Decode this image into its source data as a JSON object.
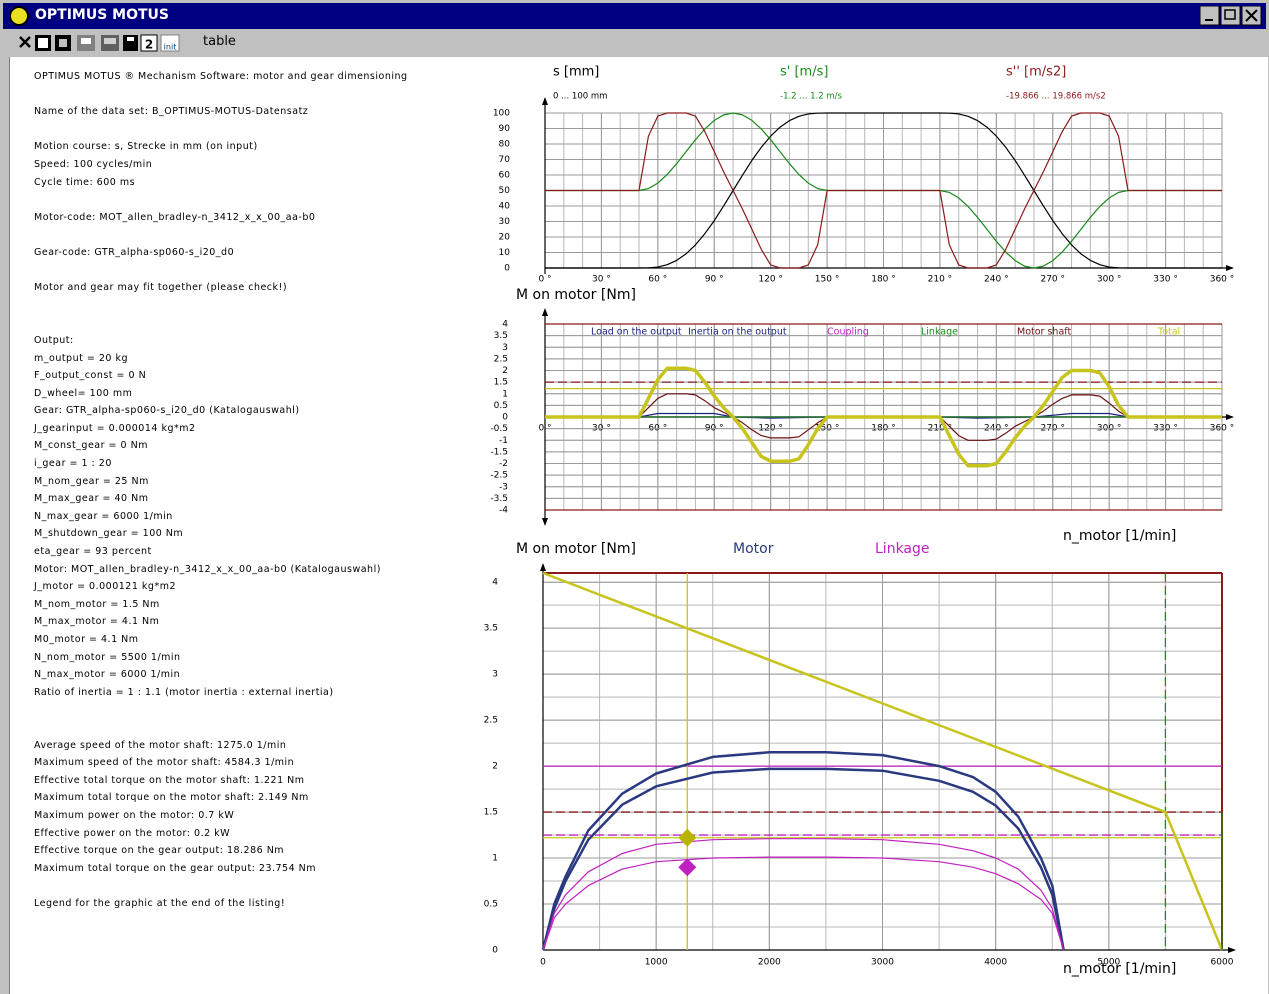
{
  "window": {
    "title": "OPTIMUS MOTUS"
  },
  "toolbar": {
    "icon_texts": [
      "2",
      "init"
    ],
    "label": "table"
  },
  "listing": [
    [
      "OPTIMUS MOTUS ® Mechanism Software: motor and gear dimensioning"
    ],
    [
      "Name of the data set: B_OPTIMUS-MOTUS-Datensatz"
    ],
    [
      "Motion course: s, Strecke in mm (on input)",
      "Speed: 100 cycles/min",
      "Cycle time: 600 ms"
    ],
    [
      "Motor-code: MOT_allen_bradley-n_3412_x_x_00_aa-b0"
    ],
    [
      "Gear-code: GTR_alpha-sp060-s_i20_d0"
    ],
    [
      "Motor and gear may fit together (please check!)"
    ],
    [
      "Output:",
      "m_output = 20 kg",
      "F_output_const = 0 N",
      "D_wheel= 100 mm",
      "Gear: GTR_alpha-sp060-s_i20_d0 (Katalogauswahl)",
      "J_gearinput = 0.000014 kg*m2",
      "M_const_gear = 0 Nm",
      "i_gear = 1 : 20",
      "M_nom_gear = 25 Nm",
      "M_max_gear = 40 Nm",
      "N_max_gear = 6000 1/min",
      "M_shutdown_gear = 100 Nm",
      "eta_gear = 93 percent",
      "Motor: MOT_allen_bradley-n_3412_x_x_00_aa-b0 (Katalogauswahl)",
      "J_motor = 0.000121 kg*m2",
      "M_nom_motor = 1.5 Nm",
      "M_max_motor = 4.1 Nm",
      "M0_motor = 4.1 Nm",
      "N_nom_motor = 5500 1/min",
      "N_max_motor = 6000 1/min",
      "Ratio of inertia = 1 : 1.1 (motor inertia : external inertia)"
    ],
    [
      "Average speed of the motor shaft: 1275.0 1/min",
      "Maximum speed of the motor shaft: 4584.3 1/min",
      "Effective total torque on the motor shaft: 1.221 Nm",
      "Maximum total torque on the motor shaft: 2.149 Nm",
      "Maximum power on the motor: 0.7 kW",
      "Effective power on the motor: 0.2 kW",
      "Effective torque on the gear output: 18.286 Nm",
      "Maximum total torque on the gear output: 23.754 Nm"
    ],
    [
      "Legend for the graphic at the end of the listing!"
    ]
  ],
  "chart_data": [
    {
      "type": "line",
      "x": [
        0,
        5,
        10,
        15,
        20,
        25,
        30,
        35,
        40,
        45,
        50,
        55,
        60,
        65,
        70,
        75,
        80,
        85,
        90,
        95,
        100,
        105,
        110,
        115,
        120,
        125,
        130,
        135,
        140,
        145,
        150,
        155,
        160,
        165,
        170,
        175,
        180,
        185,
        190,
        195,
        200,
        205,
        210,
        215,
        220,
        225,
        230,
        235,
        240,
        245,
        250,
        255,
        260,
        265,
        270,
        275,
        280,
        285,
        290,
        295,
        300,
        305,
        310,
        315,
        320,
        325,
        330,
        335,
        340,
        345,
        350,
        355,
        360
      ],
      "series": [
        {
          "name": "s [mm]",
          "range": "0 ... 100 mm",
          "color": "#000000",
          "values": [
            0,
            0,
            0,
            0,
            0,
            0,
            0,
            0,
            0,
            0,
            0,
            0.1,
            0.6,
            2.1,
            4.9,
            9.1,
            14.9,
            22.1,
            30.6,
            40.1,
            50,
            59.9,
            69.4,
            77.9,
            85.1,
            90.9,
            95.1,
            97.9,
            99.4,
            99.9,
            100,
            100,
            100,
            100,
            100,
            100,
            100,
            100,
            100,
            100,
            100,
            100,
            100,
            99.9,
            99.4,
            97.9,
            95.1,
            90.9,
            85.1,
            77.9,
            69.4,
            59.9,
            50,
            40.1,
            30.6,
            22.1,
            14.9,
            9.1,
            4.9,
            2.1,
            0.6,
            0.1,
            0,
            0,
            0,
            0,
            0,
            0,
            0,
            0,
            0,
            0,
            0
          ]
        },
        {
          "name": "s' [m/s]",
          "range": "-1.2 ... 1.2 m/s",
          "color": "#1a8a1a",
          "values": [
            50,
            50,
            50,
            50,
            50,
            50,
            50,
            50,
            50,
            50,
            50,
            51.2,
            54.8,
            60.3,
            67.3,
            75,
            82.7,
            89.7,
            95.2,
            98.8,
            100,
            98.8,
            95.2,
            89.7,
            82.7,
            75,
            67.3,
            60.3,
            54.8,
            51.2,
            50,
            50,
            50,
            50,
            50,
            50,
            50,
            50,
            50,
            50,
            50,
            50,
            50,
            48.8,
            45.2,
            39.7,
            32.7,
            25,
            17.3,
            10.3,
            4.8,
            1.2,
            0,
            1.2,
            4.8,
            10.3,
            17.3,
            25,
            32.7,
            39.7,
            45.2,
            48.8,
            50,
            50,
            50,
            50,
            50,
            50,
            50,
            50,
            50,
            50,
            50
          ]
        },
        {
          "name": "s'' [m/s2]",
          "range": "-19.866 ... 19.866 m/s2",
          "color": "#8b1a1a",
          "values": [
            50,
            50,
            50,
            50,
            50,
            50,
            50,
            50,
            50,
            50,
            50,
            85,
            98,
            100,
            100,
            100,
            98,
            88,
            75,
            62,
            50,
            38,
            25,
            12,
            2,
            0,
            0,
            0,
            2,
            15,
            50,
            50,
            50,
            50,
            50,
            50,
            50,
            50,
            50,
            50,
            50,
            50,
            50,
            15,
            2,
            0,
            0,
            0,
            2,
            12,
            25,
            38,
            50,
            62,
            75,
            88,
            98,
            100,
            100,
            100,
            98,
            85,
            50,
            50,
            50,
            50,
            50,
            50,
            50,
            50,
            50,
            50,
            50
          ]
        }
      ],
      "xlim": [
        0,
        360
      ],
      "xticks": [
        {
          "value": 0,
          "label": "0 °"
        },
        {
          "value": 30,
          "label": "30 °"
        },
        {
          "value": 60,
          "label": "60 °"
        },
        {
          "value": 90,
          "label": "90 °"
        },
        {
          "value": 120,
          "label": "120 °"
        },
        {
          "value": 150,
          "label": "150 °"
        },
        {
          "value": 180,
          "label": "180 °"
        },
        {
          "value": 210,
          "label": "210 °"
        },
        {
          "value": 240,
          "label": "240 °"
        },
        {
          "value": 270,
          "label": "270 °"
        },
        {
          "value": 300,
          "label": "300 °"
        },
        {
          "value": 330,
          "label": "330 °"
        },
        {
          "value": 360,
          "label": "360 °"
        }
      ],
      "ylim": [
        0,
        100
      ],
      "yticks": [
        0,
        10,
        20,
        30,
        40,
        50,
        60,
        70,
        80,
        90,
        100
      ],
      "grid": true
    },
    {
      "type": "line",
      "ylabel": "M on motor [Nm]",
      "x": [
        0,
        5,
        10,
        15,
        20,
        25,
        30,
        35,
        40,
        45,
        50,
        55,
        60,
        65,
        70,
        75,
        80,
        85,
        90,
        95,
        100,
        105,
        110,
        115,
        120,
        125,
        130,
        135,
        140,
        145,
        150,
        155,
        160,
        165,
        170,
        175,
        180,
        185,
        190,
        195,
        200,
        205,
        210,
        215,
        220,
        225,
        230,
        235,
        240,
        245,
        250,
        255,
        260,
        265,
        270,
        275,
        280,
        285,
        290,
        295,
        300,
        305,
        310,
        315,
        320,
        325,
        330,
        335,
        340,
        345,
        350,
        355,
        360
      ],
      "series": [
        {
          "name": "Load on the output",
          "color": "#1a237e",
          "x": [
            0,
            360
          ],
          "values": [
            0,
            0
          ]
        },
        {
          "name": "Inertia on the output",
          "color": "#1a237e",
          "x": [
            0,
            50,
            60,
            90,
            100,
            120,
            150,
            210,
            230,
            260,
            280,
            300,
            310,
            360
          ],
          "values": [
            0,
            0,
            0.15,
            0.15,
            0,
            -0.05,
            0,
            0,
            -0.05,
            0,
            0.15,
            0.15,
            0,
            0
          ]
        },
        {
          "name": "Coupling",
          "color": "#c020c0",
          "x": [
            0,
            360
          ],
          "values": [
            0,
            0
          ]
        },
        {
          "name": "Linkage",
          "color": "#1a8a1a",
          "x": [
            0,
            360
          ],
          "values": [
            0,
            0
          ]
        },
        {
          "name": "Motor shaft",
          "color": "#6b1010",
          "values": [
            0,
            0,
            0,
            0,
            0,
            0,
            0,
            0,
            0,
            0,
            0,
            0.4,
            0.8,
            1.0,
            1.0,
            1.0,
            0.95,
            0.7,
            0.4,
            0.2,
            0,
            -0.25,
            -0.55,
            -0.8,
            -0.9,
            -0.9,
            -0.9,
            -0.85,
            -0.55,
            -0.25,
            0,
            0,
            0,
            0,
            0,
            0,
            0,
            0,
            0,
            0,
            0,
            0,
            0,
            -0.4,
            -0.8,
            -1.0,
            -1.0,
            -1.0,
            -0.95,
            -0.7,
            -0.4,
            -0.2,
            0,
            0.25,
            0.55,
            0.8,
            0.95,
            0.95,
            0.95,
            0.9,
            0.6,
            0.25,
            0,
            0,
            0,
            0,
            0,
            0,
            0,
            0,
            0,
            0,
            0
          ]
        },
        {
          "name": "Total",
          "color": "#c8c41e",
          "values": [
            0,
            0,
            0,
            0,
            0,
            0,
            0,
            0,
            0,
            0,
            0,
            0.8,
            1.6,
            2.1,
            2.1,
            2.1,
            2.0,
            1.5,
            0.9,
            0.4,
            0,
            -0.5,
            -1.1,
            -1.7,
            -1.9,
            -1.9,
            -1.9,
            -1.8,
            -1.2,
            -0.5,
            0,
            0,
            0,
            0,
            0,
            0,
            0,
            0,
            0,
            0,
            0,
            0,
            0,
            -0.8,
            -1.6,
            -2.1,
            -2.1,
            -2.1,
            -2.0,
            -1.5,
            -0.9,
            -0.4,
            0,
            0.5,
            1.1,
            1.7,
            2.0,
            2.0,
            2.0,
            1.9,
            1.3,
            0.5,
            0,
            0,
            0,
            0,
            0,
            0,
            0,
            0,
            0,
            0,
            0
          ]
        }
      ],
      "hlines": [
        {
          "value": 4,
          "color": "#8b1a1a"
        },
        {
          "value": -4,
          "color": "#8b1a1a"
        },
        {
          "value": 1.5,
          "color": "#8b1a1a",
          "dash": true
        },
        {
          "value": 1.221,
          "color": "#c8c41e"
        }
      ],
      "xlim": [
        0,
        360
      ],
      "xticks": [
        {
          "value": 0,
          "label": "0 °"
        },
        {
          "value": 30,
          "label": "30 °"
        },
        {
          "value": 60,
          "label": "60 °"
        },
        {
          "value": 90,
          "label": "90 °"
        },
        {
          "value": 120,
          "label": "120 °"
        },
        {
          "value": 150,
          "label": "150 °"
        },
        {
          "value": 180,
          "label": "180 °"
        },
        {
          "value": 210,
          "label": "210 °"
        },
        {
          "value": 240,
          "label": "240 °"
        },
        {
          "value": 270,
          "label": "270 °"
        },
        {
          "value": 300,
          "label": "300 °"
        },
        {
          "value": 330,
          "label": "330 °"
        },
        {
          "value": 360,
          "label": "360 °"
        }
      ],
      "ylim": [
        -4,
        4
      ],
      "yticks": [
        4,
        3.5,
        3,
        2.5,
        2,
        1.5,
        1,
        0.5,
        0,
        -0.5,
        -1,
        -1.5,
        -2,
        -2.5,
        -3,
        -3.5,
        -4
      ],
      "grid": true
    },
    {
      "type": "line",
      "ylabel": "M on motor [Nm]",
      "xlabel": "n_motor [1/min]",
      "x": [
        0,
        100,
        200,
        400,
        700,
        1000,
        1500,
        2000,
        2500,
        3000,
        3500,
        3800,
        4000,
        4200,
        4400,
        4500,
        4600
      ],
      "series": [
        {
          "name": "Motor",
          "color": "#2b3a80",
          "values": [
            0,
            0.5,
            0.8,
            1.3,
            1.7,
            1.92,
            2.1,
            2.15,
            2.15,
            2.12,
            2.0,
            1.88,
            1.72,
            1.45,
            1.0,
            0.7,
            0
          ]
        },
        {
          "color": "#2b3a80",
          "values": [
            0,
            0.45,
            0.75,
            1.2,
            1.58,
            1.78,
            1.93,
            1.97,
            1.97,
            1.95,
            1.84,
            1.72,
            1.57,
            1.32,
            0.9,
            0.6,
            0
          ]
        },
        {
          "name": "Linkage",
          "color": "#c020c0",
          "values": [
            0,
            0.4,
            0.6,
            0.85,
            1.05,
            1.15,
            1.2,
            1.21,
            1.21,
            1.2,
            1.15,
            1.08,
            1.0,
            0.88,
            0.65,
            0.45,
            0
          ]
        },
        {
          "color": "#c020c0",
          "values": [
            0,
            0.35,
            0.5,
            0.7,
            0.88,
            0.96,
            1.0,
            1.01,
            1.01,
            1.0,
            0.96,
            0.9,
            0.83,
            0.72,
            0.55,
            0.4,
            0
          ]
        },
        {
          "color": "#c8c41e",
          "x": [
            0,
            5500,
            6000
          ],
          "values": [
            4.1,
            1.5,
            0
          ]
        },
        {
          "color": "#1a8a1a",
          "x": [
            6000,
            6000
          ],
          "values": [
            0,
            1.5
          ]
        }
      ],
      "hlines": [
        {
          "value": 2,
          "color": "#c020c0"
        },
        {
          "value": 1.5,
          "color": "#8b1a1a",
          "dash": true
        },
        {
          "value": 1.25,
          "color": "#c020c0",
          "dash": true
        },
        {
          "value": 1.221,
          "color": "#c8c41e"
        }
      ],
      "vlines": [
        {
          "value": 1275,
          "color": "#c8c41e"
        },
        {
          "value": 5500,
          "color": "#1a8a1a",
          "dash": true
        }
      ],
      "points": [
        {
          "x": 1275,
          "y": 1.221,
          "color": "#b8b400"
        },
        {
          "x": 1275,
          "y": 0.9,
          "color": "#c020c0"
        }
      ],
      "xlim": [
        0,
        6000
      ],
      "xticks": [
        0,
        1000,
        2000,
        3000,
        4000,
        5000,
        6000
      ],
      "ylim": [
        0,
        4.1
      ],
      "yticks": [
        0,
        0.5,
        1,
        1.5,
        2,
        2.5,
        3,
        3.5,
        4
      ],
      "grid": true
    }
  ]
}
